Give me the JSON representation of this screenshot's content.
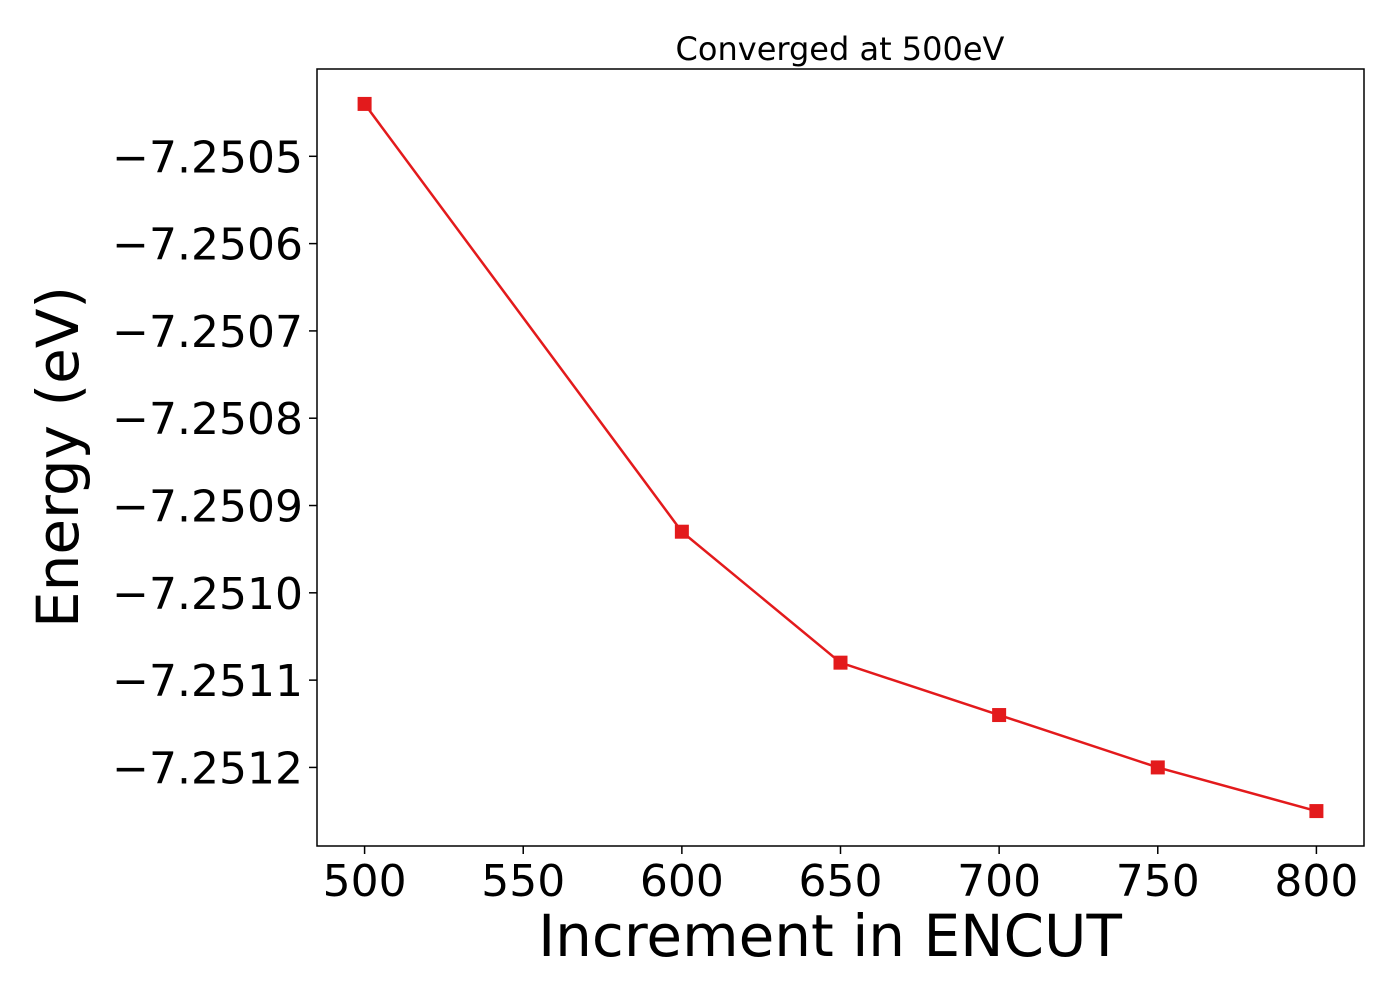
{
  "chart_data": {
    "type": "line",
    "title": "Converged at 500eV",
    "xlabel": "Increment in ENCUT",
    "ylabel": "Energy (eV)",
    "x": [
      500,
      600,
      650,
      700,
      750,
      800
    ],
    "series": [
      {
        "values": [
          -7.25044,
          -7.25093,
          -7.25108,
          -7.25114,
          -7.2512,
          -7.25125
        ],
        "color": "#e31a1c",
        "marker": "square"
      }
    ],
    "xlim": [
      485,
      815
    ],
    "ylim": [
      -7.25129,
      -7.2504
    ],
    "xticks": [
      500,
      550,
      600,
      650,
      700,
      750,
      800
    ],
    "xtick_labels": [
      "500",
      "550",
      "600",
      "650",
      "700",
      "750",
      "800"
    ],
    "yticks": [
      -7.2505,
      -7.2506,
      -7.2507,
      -7.2508,
      -7.2509,
      -7.251,
      -7.2511,
      -7.2512
    ],
    "ytick_labels": [
      "−7.2505",
      "−7.2506",
      "−7.2507",
      "−7.2508",
      "−7.2509",
      "−7.2510",
      "−7.2511",
      "−7.2512"
    ],
    "grid": false,
    "legend": false
  }
}
